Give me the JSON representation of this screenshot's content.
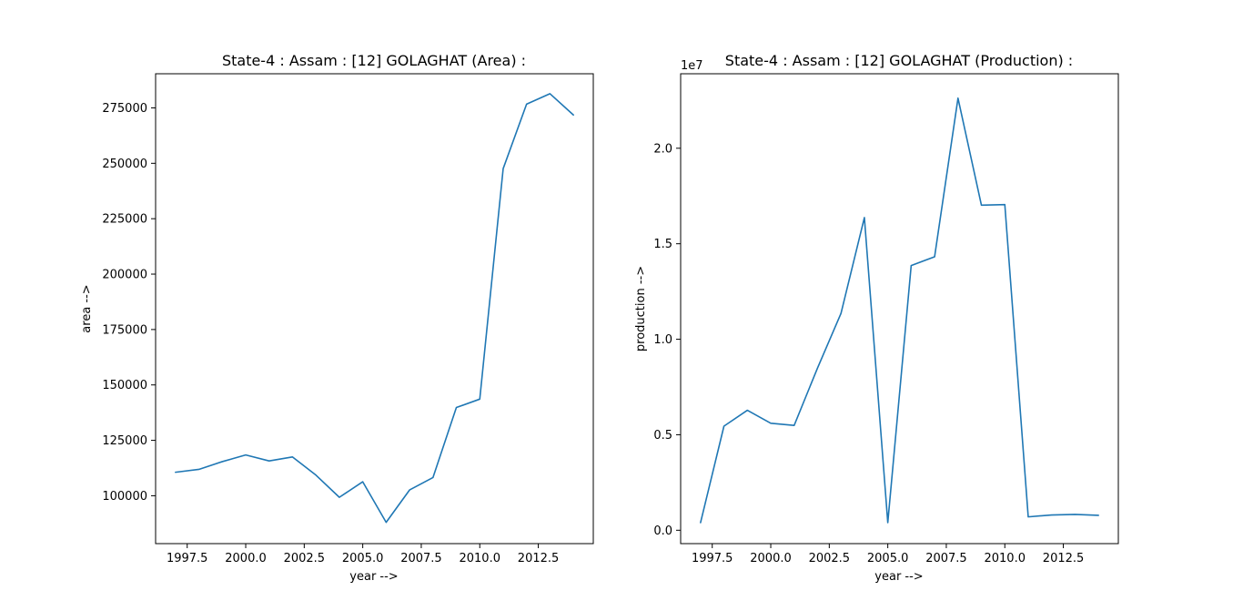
{
  "chart_data": [
    {
      "type": "line",
      "title": "State-4 : Assam : [12] GOLAGHAT (Area) :",
      "xlabel": "year -->",
      "ylabel": "area -->",
      "offset_text": "",
      "xlim": [
        1996.15,
        2014.85
      ],
      "ylim": [
        78400,
        290400
      ],
      "xticks": [
        1997.5,
        2000.0,
        2002.5,
        2005.0,
        2007.5,
        2010.0,
        2012.5
      ],
      "xtick_labels": [
        "1997.5",
        "2000.0",
        "2002.5",
        "2005.0",
        "2007.5",
        "2010.0",
        "2012.5"
      ],
      "yticks": [
        100000,
        125000,
        150000,
        175000,
        200000,
        225000,
        250000,
        275000
      ],
      "ytick_labels": [
        "100000",
        "125000",
        "150000",
        "175000",
        "200000",
        "225000",
        "250000",
        "275000"
      ],
      "grid": false,
      "color": "#1f77b4",
      "x": [
        1997,
        1998,
        1999,
        2000,
        2001,
        2002,
        2003,
        2004,
        2005,
        2006,
        2007,
        2008,
        2009,
        2010,
        2011,
        2012,
        2013,
        2014
      ],
      "y": [
        110600,
        111900,
        115400,
        118400,
        115700,
        117500,
        109300,
        99300,
        106300,
        88000,
        102600,
        108200,
        139800,
        143600,
        247600,
        276700,
        281400,
        271800
      ]
    },
    {
      "type": "line",
      "title": "State-4 : Assam : [12] GOLAGHAT (Production) :",
      "xlabel": "year -->",
      "ylabel": "production -->",
      "offset_text": "1e7",
      "xlim": [
        1996.15,
        2014.85
      ],
      "ylim": [
        -0.07,
        2.39
      ],
      "xticks": [
        1997.5,
        2000.0,
        2002.5,
        2005.0,
        2007.5,
        2010.0,
        2012.5
      ],
      "xtick_labels": [
        "1997.5",
        "2000.0",
        "2002.5",
        "2005.0",
        "2007.5",
        "2010.0",
        "2012.5"
      ],
      "yticks": [
        0.0,
        0.5,
        1.0,
        1.5,
        2.0
      ],
      "ytick_labels": [
        "0.0",
        "0.5",
        "1.0",
        "1.5",
        "2.0"
      ],
      "grid": false,
      "color": "#1f77b4",
      "x": [
        1997,
        1998,
        1999,
        2000,
        2001,
        2002,
        2003,
        2004,
        2005,
        2006,
        2007,
        2008,
        2009,
        2010,
        2011,
        2012,
        2013,
        2014
      ],
      "y": [
        0.04,
        0.545,
        0.628,
        0.56,
        0.549,
        0.85,
        1.135,
        1.637,
        0.04,
        1.386,
        1.432,
        2.262,
        1.702,
        1.705,
        0.07,
        0.08,
        0.083,
        0.078
      ]
    }
  ]
}
